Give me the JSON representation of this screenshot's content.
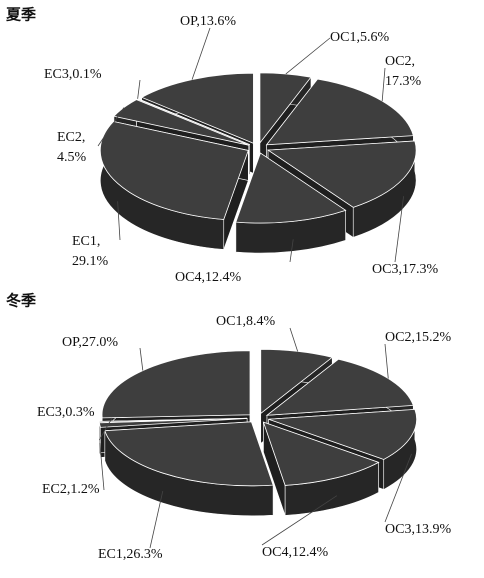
{
  "chart_data": [
    {
      "type": "pie",
      "title": "夏季",
      "color": "#3e3e3e",
      "values": [
        5.6,
        17.3,
        17.3,
        12.4,
        29.1,
        4.5,
        0.1,
        13.6
      ],
      "value_labels": [
        [
          "OC1,5.6%"
        ],
        [
          "OC2,",
          "17.3%"
        ],
        [
          "OC3,17.3%"
        ],
        [
          "OC4,12.4%"
        ],
        [
          "EC1,",
          "29.1%"
        ],
        [
          "EC2,",
          "4.5%"
        ],
        [
          "EC3,0.1%"
        ],
        [
          "OP,13.6%"
        ]
      ]
    },
    {
      "type": "pie",
      "title": "冬季",
      "color": "#3e3e3e",
      "values": [
        8.4,
        15.2,
        13.9,
        12.4,
        26.3,
        1.2,
        0.3,
        27.0
      ],
      "value_labels": [
        [
          "OC1,8.4%"
        ],
        [
          "OC2,15.2%"
        ],
        [
          "OC3,13.9%"
        ],
        [
          "OC4,12.4%"
        ],
        [
          "EC1,26.3%"
        ],
        [
          "EC2,1.2%"
        ],
        [
          "EC3,0.3%"
        ],
        [
          "OP,27.0%"
        ]
      ]
    }
  ]
}
